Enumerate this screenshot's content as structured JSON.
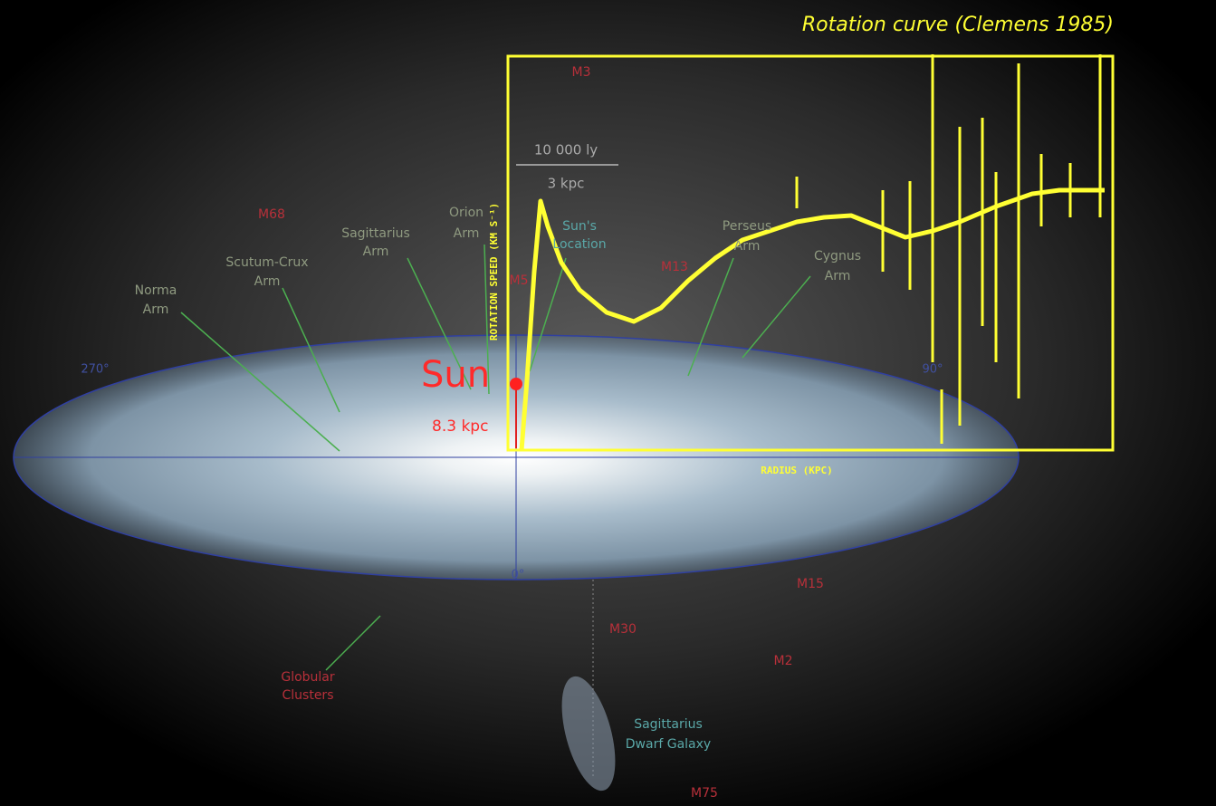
{
  "header": {
    "subtitle": "Rotation curve (Clemens 1985)"
  },
  "scale_bar": {
    "light_years": "10 000 ly",
    "kpc": "3 kpc"
  },
  "plot": {
    "y_label": "ROTATION SPEED (KM S⁻¹)",
    "x_label": "RADIUS (KPC)"
  },
  "arms": {
    "orion": [
      "Orion",
      "Arm"
    ],
    "sun_location": [
      "Sun's",
      "Location"
    ],
    "sagittarius": [
      "Sagittarius",
      "Arm"
    ],
    "scutum_crux": [
      "Scutum-Crux",
      "Arm"
    ],
    "norma": [
      "Norma",
      "Arm"
    ],
    "perseus": [
      "Perseus",
      "Arm"
    ],
    "cygnus": [
      "Cygnus",
      "Arm"
    ]
  },
  "clusters": {
    "m3": "M3",
    "m68": "M68",
    "m5": "M5",
    "m13": "M13",
    "m15": "M15",
    "m30": "M30",
    "m2": "M2",
    "m75": "M75",
    "globular": [
      "Globular",
      "Clusters"
    ]
  },
  "dwarf": [
    "Sagittarius",
    "Dwarf Galaxy"
  ],
  "angles": {
    "left": "270°",
    "right": "90°",
    "bottom": "0°"
  },
  "sun": {
    "label": "Sun",
    "distance": "8.3 kpc"
  }
}
